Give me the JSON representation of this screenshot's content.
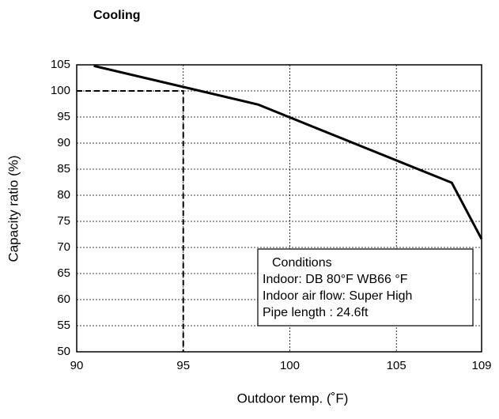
{
  "chart_data": {
    "type": "line",
    "title": "Cooling",
    "x_label": "Outdoor temp. (˚F)",
    "y_label": "Capacity ratio (%)",
    "x": [
      90.8,
      98.5,
      107.6,
      109
    ],
    "series": [
      {
        "color": "#000000",
        "values": [
          104.8,
          97.4,
          82.4,
          71.6
        ]
      }
    ],
    "xlim": [
      90,
      109
    ],
    "xticks": [
      90,
      95,
      100,
      105,
      109
    ],
    "ylim": [
      50,
      105
    ],
    "yticks": [
      50,
      55,
      60,
      65,
      70,
      75,
      80,
      85,
      90,
      95,
      100,
      105
    ],
    "grid": true,
    "reference": {
      "x": 95,
      "y": 100
    },
    "annotation": {
      "lines": [
        "Conditions",
        "Indoor: DB 80°F WB66 °F",
        "Indoor air flow: Super High",
        "Pipe length : 24.6ft"
      ]
    }
  }
}
